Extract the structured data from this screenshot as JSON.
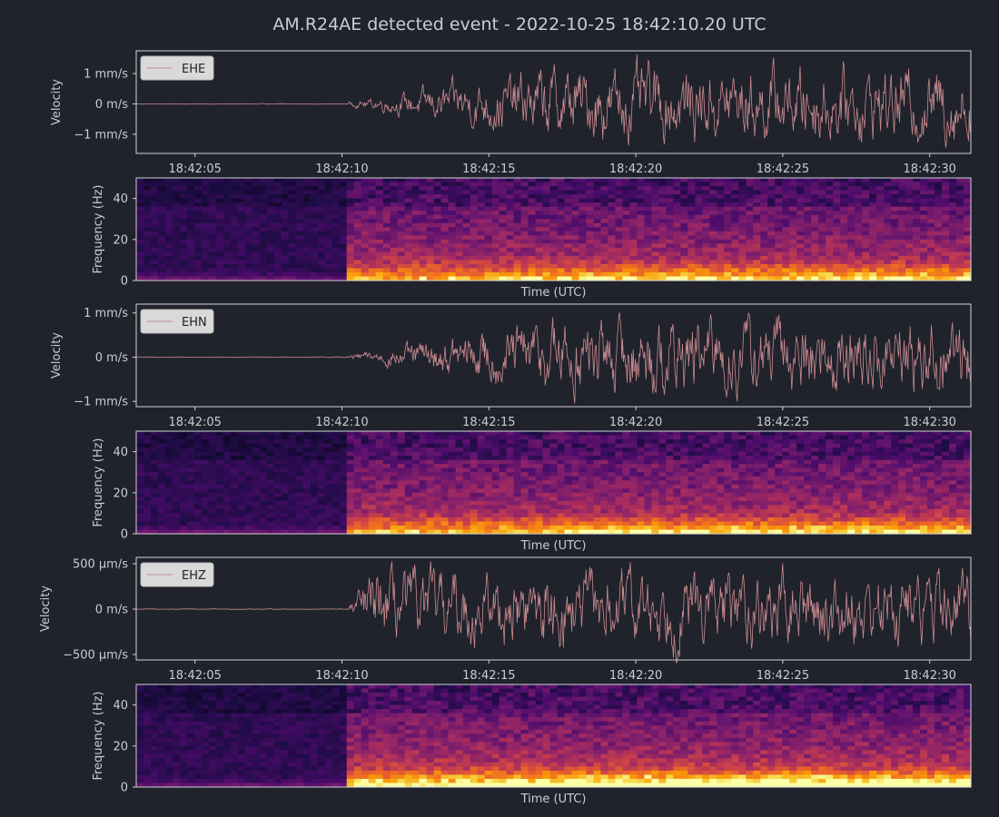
{
  "figure": {
    "title": "AM.R24AE detected event - 2022-10-25 18:42:10.20 UTC",
    "background": "#20232c",
    "axes_color": "#cfd3d8",
    "text_color": "#c9cdd3",
    "waveform_color": "#c98a8f",
    "legend_bg": "#d9d9d9"
  },
  "chart_data": [
    {
      "type": "line",
      "channel": "EHE",
      "ylabel": "Velocity",
      "legend": [
        "EHE"
      ],
      "ytick_labels": [
        "1 mm/s",
        "0 m/s",
        "−1 mm/s"
      ],
      "yticks": [
        1,
        0,
        -1
      ],
      "ylim": [
        -1.63,
        1.75
      ],
      "xtick_labels": [
        "18:42:05",
        "18:42:10",
        "18:42:15",
        "18:42:20",
        "18:42:25",
        "18:42:30"
      ],
      "xlim_seconds": [
        3.0,
        31.4
      ],
      "onset_seconds": 10.2,
      "peak_amplitude": 1.4,
      "trailing_amplitude": 0.8,
      "series": [
        {
          "name": "EHE"
        }
      ]
    },
    {
      "type": "heatmap",
      "channel": "EHE",
      "ylabel": "Frequency (Hz)",
      "xlabel": "Time (UTC)",
      "ytick_labels": [
        "40",
        "20",
        "0"
      ],
      "yticks": [
        40,
        20,
        0
      ],
      "ylim": [
        0,
        50
      ],
      "xlim_seconds": [
        3.0,
        31.4
      ],
      "onset_seconds": 10.2,
      "colormap": "inferno"
    },
    {
      "type": "line",
      "channel": "EHN",
      "ylabel": "Velocity",
      "legend": [
        "EHN"
      ],
      "ytick_labels": [
        "1 mm/s",
        "0 m/s",
        "−1 mm/s"
      ],
      "yticks": [
        1,
        0,
        -1
      ],
      "ylim": [
        -1.12,
        1.2
      ],
      "xtick_labels": [
        "18:42:05",
        "18:42:10",
        "18:42:15",
        "18:42:20",
        "18:42:25",
        "18:42:30"
      ],
      "xlim_seconds": [
        3.0,
        31.4
      ],
      "onset_seconds": 10.2,
      "peak_amplitude": 1.0,
      "trailing_amplitude": 0.85,
      "series": [
        {
          "name": "EHN"
        }
      ]
    },
    {
      "type": "heatmap",
      "channel": "EHN",
      "ylabel": "Frequency (Hz)",
      "xlabel": "Time (UTC)",
      "ytick_labels": [
        "40",
        "20",
        "0"
      ],
      "yticks": [
        40,
        20,
        0
      ],
      "ylim": [
        0,
        50
      ],
      "xlim_seconds": [
        3.0,
        31.4
      ],
      "onset_seconds": 10.2,
      "colormap": "inferno"
    },
    {
      "type": "line",
      "channel": "EHZ",
      "ylabel": "Velocity",
      "legend": [
        "EHZ"
      ],
      "ytick_labels": [
        "500 µm/s",
        "0 m/s",
        "−500 µm/s"
      ],
      "yticks": [
        500,
        0,
        -500
      ],
      "ylim": [
        -560,
        570
      ],
      "xtick_labels": [
        "18:42:05",
        "18:42:10",
        "18:42:15",
        "18:42:20",
        "18:42:25",
        "18:42:30"
      ],
      "xlim_seconds": [
        3.0,
        31.4
      ],
      "onset_seconds": 10.2,
      "peak_amplitude": 460,
      "trailing_amplitude": 350,
      "series": [
        {
          "name": "EHZ"
        }
      ]
    },
    {
      "type": "heatmap",
      "channel": "EHZ",
      "ylabel": "Frequency (Hz)",
      "xlabel": "Time (UTC)",
      "ytick_labels": [
        "40",
        "20",
        "0"
      ],
      "yticks": [
        40,
        20,
        0
      ],
      "ylim": [
        0,
        50
      ],
      "xlim_seconds": [
        3.0,
        31.4
      ],
      "onset_seconds": 10.2,
      "colormap": "inferno"
    }
  ]
}
